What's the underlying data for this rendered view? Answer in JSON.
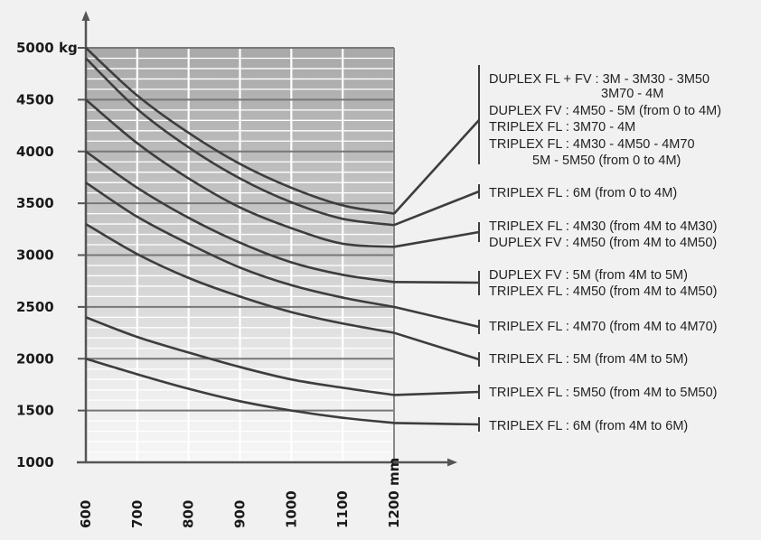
{
  "chart_data": {
    "type": "line",
    "title": "",
    "xlabel": "",
    "ylabel": "",
    "x_unit": "mm",
    "y_unit": "kg",
    "xlim": [
      600,
      1200
    ],
    "ylim": [
      1000,
      5000
    ],
    "x_ticks": [
      "600",
      "700",
      "800",
      "900",
      "1000",
      "1100",
      "1200 mm"
    ],
    "y_ticks": [
      "5000 kg",
      "4500",
      "4000",
      "3500",
      "3000",
      "2500",
      "2000",
      "1500",
      "1000"
    ],
    "x": [
      600,
      700,
      800,
      900,
      1000,
      1100,
      1200
    ],
    "series": [
      {
        "values": [
          5000,
          4540,
          4180,
          3880,
          3650,
          3480,
          3400
        ]
      },
      {
        "values": [
          4900,
          4410,
          4040,
          3740,
          3510,
          3350,
          3290
        ]
      },
      {
        "values": [
          4500,
          4080,
          3740,
          3460,
          3260,
          3110,
          3080
        ]
      },
      {
        "values": [
          4000,
          3650,
          3360,
          3120,
          2930,
          2810,
          2740
        ]
      },
      {
        "values": [
          3700,
          3370,
          3110,
          2880,
          2710,
          2590,
          2500
        ]
      },
      {
        "values": [
          3300,
          3010,
          2780,
          2600,
          2450,
          2340,
          2250
        ]
      },
      {
        "values": [
          2400,
          2210,
          2060,
          1920,
          1800,
          1720,
          1650
        ]
      },
      {
        "values": [
          2000,
          1850,
          1710,
          1590,
          1500,
          1430,
          1380
        ]
      }
    ],
    "annotations": [
      {
        "lines": [
          "DUPLEX FL + FV : 3M  - 3M30 - 3M50",
          "3M70 - 4M",
          "DUPLEX FV : 4M50 - 5M (from 0 to 4M)",
          "TRIPLEX FL : 3M70 - 4M",
          "TRIPLEX FL : 4M30 - 4M50 - 4M70",
          "5M - 5M50 (from 0 to 4M)"
        ]
      },
      {
        "lines": [
          "TRIPLEX FL : 6M (from 0 to 4M)"
        ]
      },
      {
        "lines": [
          "TRIPLEX FL : 4M30 (from 4M to 4M30)",
          "DUPLEX FV : 4M50 (from 4M to 4M50)"
        ]
      },
      {
        "lines": [
          "DUPLEX FV : 5M (from 4M to 5M)",
          "TRIPLEX FL : 4M50 (from 4M to 4M50)"
        ]
      },
      {
        "lines": [
          "TRIPLEX FL : 4M70 (from 4M to 4M70)"
        ]
      },
      {
        "lines": [
          "TRIPLEX FL : 5M (from 4M to 5M)"
        ]
      },
      {
        "lines": [
          "TRIPLEX FL : 5M50 (from 4M to 5M50)"
        ]
      },
      {
        "lines": [
          "TRIPLEX FL : 6M (from 4M to 6M)"
        ]
      }
    ],
    "grid": true,
    "legend": "right",
    "colors": {
      "line": "#3d3d3d",
      "grid_minor": "#ffffff",
      "grid_major": "#777777",
      "axis": "#555555",
      "text": "#1a1a1a"
    }
  }
}
